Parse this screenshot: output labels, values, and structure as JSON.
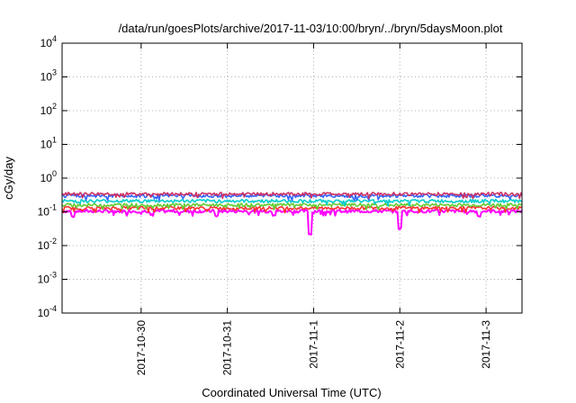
{
  "chart_data": {
    "type": "line",
    "title": "/data/run/goesPlots/archive/2017-11-03/10:00/bryn/../bryn/5daysMoon.plot",
    "xlabel": "Coordinated Universal Time (UTC)",
    "ylabel": "cGy/day",
    "y_scale": "log",
    "ylim": [
      0.0001,
      10000
    ],
    "y_ticks": [
      {
        "base": "10",
        "exp": "-4"
      },
      {
        "base": "10",
        "exp": "-3"
      },
      {
        "base": "10",
        "exp": "-2"
      },
      {
        "base": "10",
        "exp": "-1"
      },
      {
        "base": "10",
        "exp": "0"
      },
      {
        "base": "10",
        "exp": "1"
      },
      {
        "base": "10",
        "exp": "2"
      },
      {
        "base": "10",
        "exp": "3"
      },
      {
        "base": "10",
        "exp": "4"
      }
    ],
    "x_start": "2017-10-29 02:00",
    "x_end": "2017-11-03 10:00",
    "x_ticks": [
      "2017-10-30",
      "2017-10-31",
      "2017-11-1",
      "2017-11-2",
      "2017-11-3"
    ],
    "grid": true,
    "legend": "none",
    "series": [
      {
        "color": "#ff00ff",
        "base": 0.105,
        "dips": [
          [
            "2017-10-29 05:00",
            0.07
          ],
          [
            "2017-10-30 03:00",
            0.075
          ],
          [
            "2017-10-30 21:00",
            0.07
          ],
          [
            "2017-10-31 13:00",
            0.075
          ],
          [
            "2017-10-31 23:00",
            0.02
          ],
          [
            "2017-11-02 00:00",
            0.03
          ],
          [
            "2017-11-02 22:00",
            0.07
          ]
        ]
      },
      {
        "color": "#ff3333",
        "base": 0.13,
        "dips": []
      },
      {
        "color": "#66cc33",
        "base": 0.16,
        "dips": []
      },
      {
        "color": "#00cccc",
        "base": 0.21,
        "dips": []
      },
      {
        "color": "#3366ff",
        "base": 0.3,
        "dips": []
      },
      {
        "color": "#cc3366",
        "base": 0.34,
        "dips": []
      }
    ]
  }
}
